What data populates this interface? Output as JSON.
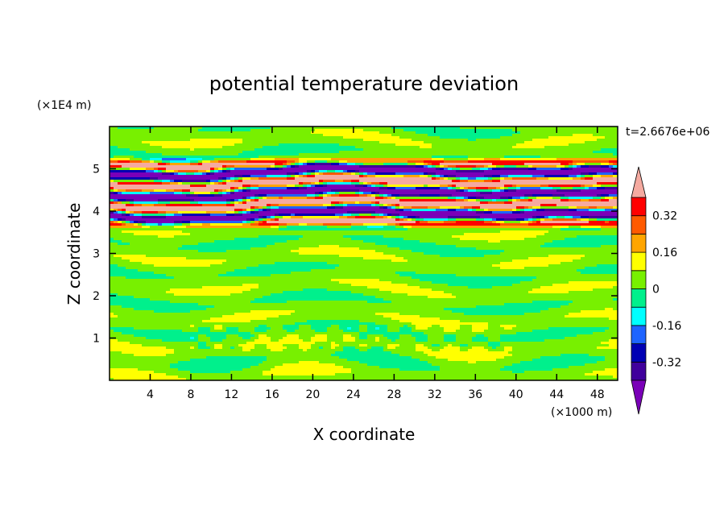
{
  "chart_data": {
    "type": "heatmap",
    "title": "potential temperature deviation",
    "xlabel": "X coordinate",
    "ylabel": "Z coordinate",
    "x_unit": "(×1000 m)",
    "y_unit": "(×1E4 m)",
    "time_label": "t=2.6676e+06",
    "xlim": [
      0,
      50
    ],
    "ylim": [
      0,
      6
    ],
    "x_ticks": [
      4,
      8,
      12,
      16,
      20,
      24,
      28,
      32,
      36,
      40,
      44,
      48
    ],
    "y_ticks": [
      1,
      2,
      3,
      4,
      5
    ],
    "colorbar": {
      "levels": [
        -0.4,
        -0.32,
        -0.24,
        -0.16,
        -0.08,
        0,
        0.08,
        0.16,
        0.24,
        0.32,
        0.4
      ],
      "labels": [
        "0.32",
        "0.16",
        "0",
        "-0.16",
        "-0.32"
      ],
      "label_values": [
        0.32,
        0.16,
        0,
        -0.16,
        -0.32
      ],
      "colors_low_to_high": [
        "#7a00b8",
        "#40009c",
        "#0000b4",
        "#1e64ff",
        "#00ffff",
        "#00f08c",
        "#78f000",
        "#ffff00",
        "#ffa500",
        "#ff5a00",
        "#ff0000",
        "#f5aaa0"
      ],
      "extend": "both"
    },
    "bands": [
      {
        "z_range": [
          0,
          3.5
        ],
        "description": "weak perturbations, mostly 0 to 0.08 (green/light green)"
      },
      {
        "z_range": [
          3.5,
          5.3
        ],
        "description": "strong alternating layers of about ±0.4 (pink/red and purple/blue)"
      },
      {
        "z_range": [
          5.3,
          6
        ],
        "description": "weak perturbations (green)"
      }
    ]
  }
}
